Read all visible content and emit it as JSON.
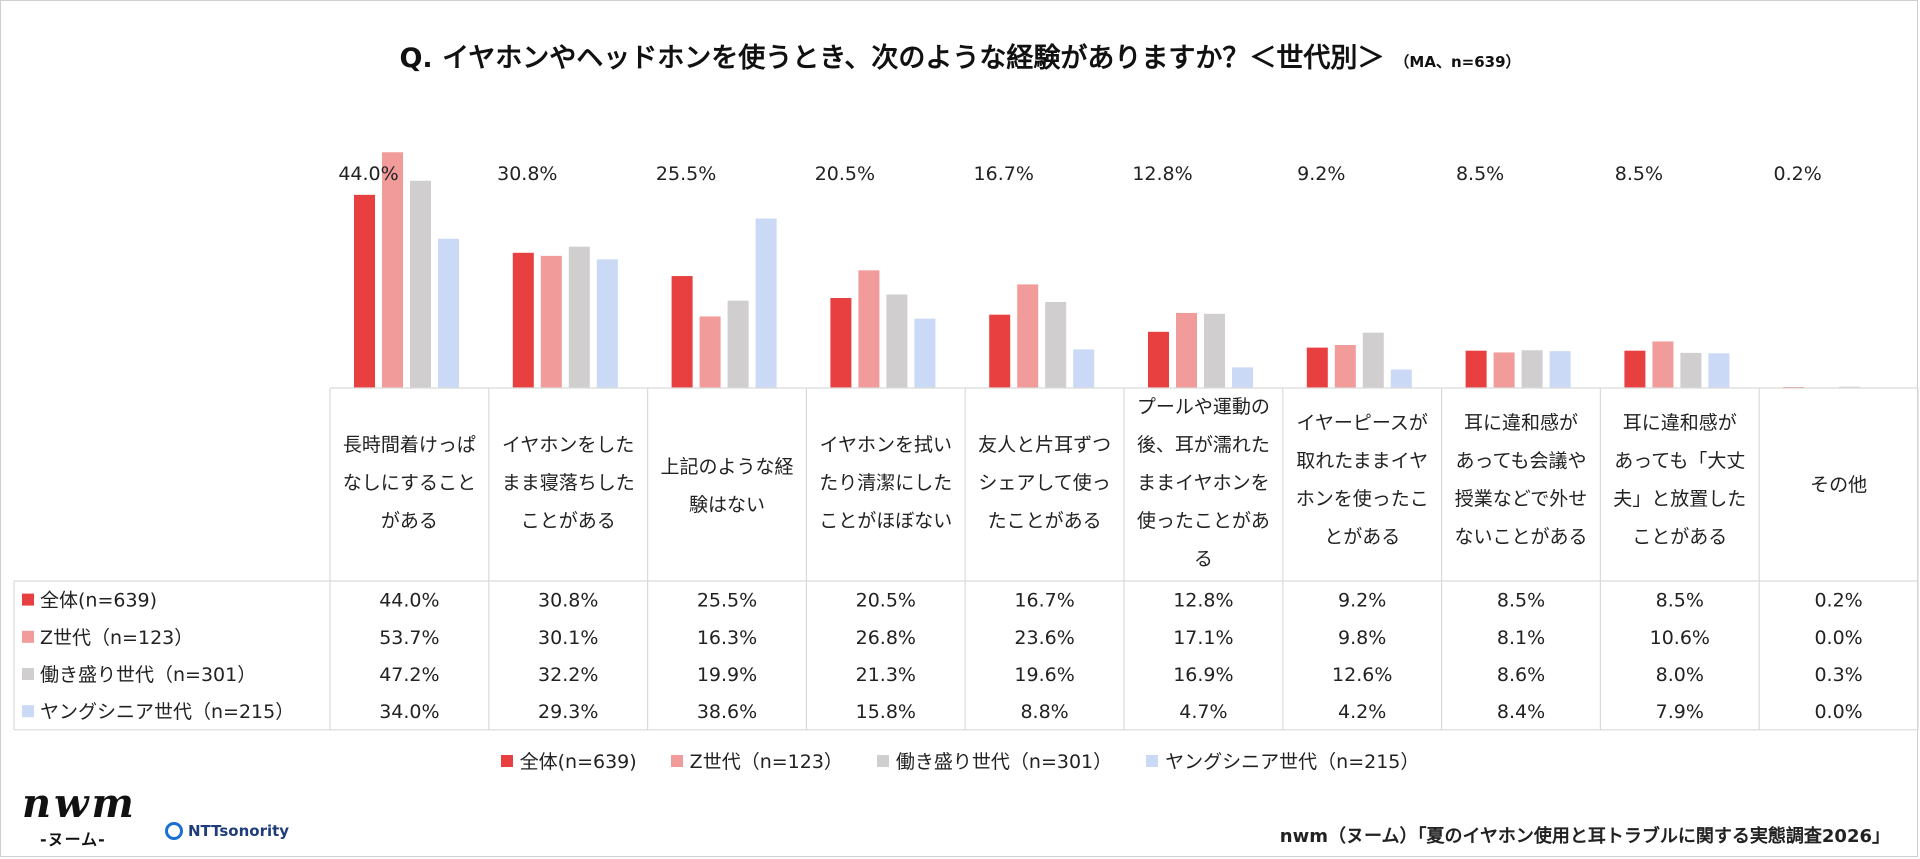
{
  "title": "Q. イヤホンやヘッドホンを使うとき、次のような経験がありますか？＜世代別＞",
  "subtitle": "（MA、n=639）",
  "colors": {
    "zentai": "#e84040",
    "z": "#f29b9b",
    "hataraki": "#d0cece",
    "young_senior": "#c9d9f6"
  },
  "chart_data": {
    "type": "bar",
    "title": "Q. イヤホンやヘッドホンを使うとき、次のような経験がありますか？＜世代別＞",
    "categories": [
      [
        "長時間着けっぱ",
        "なしにすること",
        "がある"
      ],
      [
        "イヤホンをした",
        "まま寝落ちした",
        "ことがある"
      ],
      [
        "上記のような経",
        "験はない"
      ],
      [
        "イヤホンを拭い",
        "たり清潔にした",
        "ことがほぼない"
      ],
      [
        "友人と片耳ずつ",
        "シェアして使っ",
        "たことがある"
      ],
      [
        "プールや運動の",
        "後、耳が濡れた",
        "ままイヤホンを",
        "使ったことがあ",
        "る"
      ],
      [
        "イヤーピースが",
        "取れたままイヤ",
        "ホンを使ったこ",
        "とがある"
      ],
      [
        "耳に違和感が",
        "あっても会議や",
        "授業などで外せ",
        "ないことがある"
      ],
      [
        "耳に違和感が",
        "あっても「大丈",
        "夫」と放置した",
        "ことがある"
      ],
      [
        "その他"
      ]
    ],
    "series": [
      {
        "name": "全体(n=639)",
        "color": "#e84040",
        "values": [
          44.0,
          30.8,
          25.5,
          20.5,
          16.7,
          12.8,
          9.2,
          8.5,
          8.5,
          0.2
        ],
        "labels": [
          "44.0%",
          "30.8%",
          "25.5%",
          "20.5%",
          "16.7%",
          "12.8%",
          "9.2%",
          "8.5%",
          "8.5%",
          "0.2%"
        ]
      },
      {
        "name": "Z世代（n=123）",
        "color": "#f29b9b",
        "values": [
          53.7,
          30.1,
          16.3,
          26.8,
          23.6,
          17.1,
          9.8,
          8.1,
          10.6,
          0.0
        ],
        "labels": [
          "53.7%",
          "30.1%",
          "16.3%",
          "26.8%",
          "23.6%",
          "17.1%",
          "9.8%",
          "8.1%",
          "10.6%",
          "0.0%"
        ]
      },
      {
        "name": "働き盛り世代（n=301）",
        "color": "#d0cece",
        "values": [
          47.2,
          32.2,
          19.9,
          21.3,
          19.6,
          16.9,
          12.6,
          8.6,
          8.0,
          0.3
        ],
        "labels": [
          "47.2%",
          "32.2%",
          "19.9%",
          "21.3%",
          "19.6%",
          "16.9%",
          "12.6%",
          "8.6%",
          "8.0%",
          "0.3%"
        ]
      },
      {
        "name": "ヤングシニア世代（n=215）",
        "color": "#c9d9f6",
        "values": [
          34.0,
          29.3,
          38.6,
          15.8,
          8.8,
          4.7,
          4.2,
          8.4,
          7.9,
          0.0
        ],
        "labels": [
          "34.0%",
          "29.3%",
          "38.6%",
          "15.8%",
          "8.8%",
          "4.7%",
          "4.2%",
          "8.4%",
          "7.9%",
          "0.0%"
        ]
      }
    ],
    "data_labels_series": "全体(n=639)",
    "grid": false,
    "legend": "bottom",
    "ylim": [
      0,
      55
    ]
  },
  "logo": {
    "brand": "nwm",
    "brand_kana": "-ヌーム-",
    "partner": "NTTsonority"
  },
  "source": "nwm（ヌーム）「夏のイヤホン使用と耳トラブルに関する実態調査2026」"
}
